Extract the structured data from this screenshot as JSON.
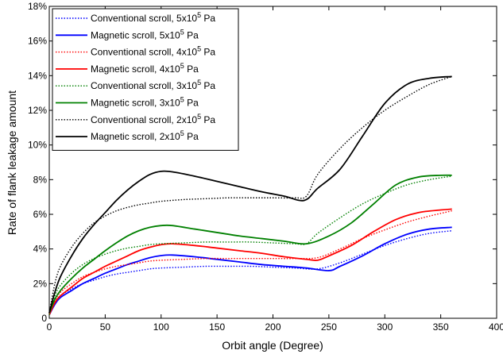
{
  "chart_data": {
    "type": "line",
    "title": "",
    "xlabel": "Orbit angle (Degree)",
    "ylabel": "Rate of flank leakage amount",
    "xlim": [
      0,
      400
    ],
    "ylim": [
      0,
      18
    ],
    "xticks": [
      0,
      50,
      100,
      150,
      200,
      250,
      300,
      350,
      400
    ],
    "yticks": [
      0,
      2,
      4,
      6,
      8,
      10,
      12,
      14,
      16,
      18
    ],
    "xtick_labels": [
      "0",
      "50",
      "100",
      "150",
      "200",
      "250",
      "300",
      "350",
      "400"
    ],
    "ytick_labels": [
      "0",
      "2%",
      "4%",
      "6%",
      "8%",
      "10%",
      "12%",
      "14%",
      "16%",
      "18%"
    ],
    "grid": false,
    "legend_position": "top-left",
    "series": [
      {
        "name": "Conventional scroll, 5x10",
        "name_sup": "5",
        "name_suffix": " Pa",
        "color": "#0000ff",
        "style": "dotted",
        "x": [
          0,
          5,
          10,
          20,
          30,
          40,
          50,
          60,
          70,
          80,
          90,
          100,
          120,
          140,
          160,
          180,
          200,
          220,
          240,
          260,
          280,
          300,
          320,
          340,
          360
        ],
        "y": [
          0.2,
          0.9,
          1.3,
          1.7,
          2.0,
          2.2,
          2.4,
          2.55,
          2.65,
          2.75,
          2.85,
          2.9,
          2.95,
          3.0,
          3.0,
          3.0,
          2.95,
          2.9,
          2.85,
          3.2,
          3.7,
          4.2,
          4.6,
          4.9,
          5.05
        ]
      },
      {
        "name": "Magnetic scroll, 5x10",
        "name_sup": "5",
        "name_suffix": " Pa",
        "color": "#0000ff",
        "style": "solid",
        "x": [
          0,
          5,
          10,
          20,
          30,
          40,
          50,
          60,
          70,
          80,
          90,
          100,
          110,
          130,
          150,
          170,
          190,
          210,
          230,
          250,
          260,
          280,
          300,
          320,
          340,
          360
        ],
        "y": [
          0.2,
          0.8,
          1.2,
          1.6,
          2.0,
          2.3,
          2.6,
          2.85,
          3.1,
          3.3,
          3.5,
          3.62,
          3.65,
          3.55,
          3.4,
          3.25,
          3.1,
          3.0,
          2.9,
          2.75,
          3.0,
          3.6,
          4.3,
          4.85,
          5.15,
          5.25
        ]
      },
      {
        "name": "Conventional scroll, 4x10",
        "name_sup": "5",
        "name_suffix": " Pa",
        "color": "#ff0000",
        "style": "dotted",
        "x": [
          0,
          5,
          10,
          20,
          30,
          40,
          50,
          60,
          70,
          80,
          90,
          100,
          120,
          140,
          160,
          180,
          200,
          220,
          240,
          260,
          280,
          300,
          320,
          340,
          360
        ],
        "y": [
          0.2,
          1.0,
          1.5,
          2.0,
          2.4,
          2.65,
          2.85,
          3.0,
          3.1,
          3.2,
          3.3,
          3.35,
          3.4,
          3.45,
          3.45,
          3.45,
          3.45,
          3.45,
          3.5,
          4.0,
          4.6,
          5.1,
          5.55,
          5.9,
          6.2
        ]
      },
      {
        "name": "Magnetic scroll, 4x10",
        "name_sup": "5",
        "name_suffix": " Pa",
        "color": "#ff0000",
        "style": "solid",
        "x": [
          0,
          5,
          10,
          20,
          30,
          40,
          50,
          60,
          70,
          80,
          90,
          100,
          110,
          130,
          150,
          170,
          190,
          210,
          230,
          240,
          250,
          270,
          290,
          310,
          330,
          350,
          360
        ],
        "y": [
          0.2,
          0.9,
          1.3,
          1.8,
          2.3,
          2.65,
          3.0,
          3.3,
          3.6,
          3.9,
          4.1,
          4.25,
          4.3,
          4.2,
          4.05,
          3.9,
          3.75,
          3.55,
          3.4,
          3.35,
          3.6,
          4.2,
          5.0,
          5.7,
          6.1,
          6.25,
          6.3
        ]
      },
      {
        "name": "Conventional scroll, 3x10",
        "name_sup": "5",
        "name_suffix": " Pa",
        "color": "#008000",
        "style": "dotted",
        "x": [
          0,
          5,
          10,
          20,
          30,
          40,
          50,
          60,
          70,
          80,
          90,
          100,
          120,
          140,
          160,
          180,
          200,
          220,
          230,
          240,
          260,
          280,
          300,
          320,
          340,
          360
        ],
        "y": [
          0.2,
          1.3,
          1.9,
          2.6,
          3.1,
          3.45,
          3.7,
          3.9,
          4.05,
          4.15,
          4.25,
          4.3,
          4.35,
          4.4,
          4.4,
          4.4,
          4.35,
          4.3,
          4.3,
          4.9,
          5.8,
          6.6,
          7.2,
          7.7,
          8.0,
          8.2
        ]
      },
      {
        "name": "Magnetic scroll, 3x10",
        "name_sup": "5",
        "name_suffix": " Pa",
        "color": "#008000",
        "style": "solid",
        "x": [
          0,
          5,
          10,
          20,
          30,
          40,
          50,
          60,
          70,
          80,
          90,
          100,
          110,
          130,
          150,
          170,
          190,
          210,
          230,
          250,
          270,
          290,
          310,
          330,
          350,
          360
        ],
        "y": [
          0.3,
          1.1,
          1.6,
          2.3,
          2.9,
          3.4,
          3.9,
          4.35,
          4.75,
          5.05,
          5.25,
          5.35,
          5.35,
          5.15,
          4.95,
          4.75,
          4.6,
          4.45,
          4.3,
          4.75,
          5.5,
          6.6,
          7.7,
          8.15,
          8.25,
          8.25
        ]
      },
      {
        "name": "Conventional scroll, 2x10",
        "name_sup": "5",
        "name_suffix": " Pa",
        "color": "#000000",
        "style": "dotted",
        "x": [
          0,
          5,
          10,
          20,
          30,
          40,
          50,
          60,
          70,
          80,
          90,
          100,
          120,
          140,
          160,
          180,
          200,
          220,
          230,
          240,
          260,
          280,
          300,
          320,
          340,
          360
        ],
        "y": [
          0.3,
          2.0,
          3.0,
          4.1,
          4.9,
          5.5,
          5.9,
          6.2,
          6.4,
          6.55,
          6.65,
          6.75,
          6.85,
          6.9,
          6.95,
          6.95,
          6.95,
          6.95,
          7.05,
          8.3,
          9.8,
          11.0,
          12.0,
          12.8,
          13.5,
          13.95
        ]
      },
      {
        "name": "Magnetic scroll, 2x10",
        "name_sup": "5",
        "name_suffix": " Pa",
        "color": "#000000",
        "style": "solid",
        "x": [
          0,
          5,
          10,
          20,
          30,
          40,
          50,
          60,
          70,
          80,
          90,
          100,
          110,
          130,
          150,
          170,
          190,
          210,
          228,
          240,
          260,
          280,
          300,
          320,
          340,
          360
        ],
        "y": [
          0.3,
          1.5,
          2.4,
          3.6,
          4.6,
          5.4,
          6.1,
          6.8,
          7.4,
          7.9,
          8.3,
          8.48,
          8.45,
          8.2,
          7.9,
          7.6,
          7.3,
          7.05,
          6.8,
          7.5,
          8.6,
          10.5,
          12.4,
          13.5,
          13.85,
          13.95
        ]
      }
    ]
  }
}
